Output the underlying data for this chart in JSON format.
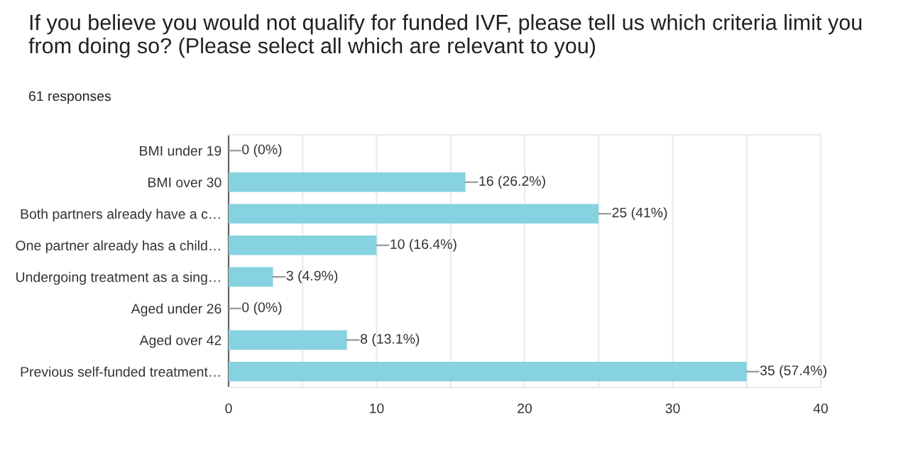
{
  "chart_data": {
    "type": "bar",
    "orientation": "horizontal",
    "title": "If you believe you would not qualify for funded IVF, please tell us which criteria limit you from doing so? (Please select all which are relevant to you)",
    "subtitle": "61 responses",
    "categories": [
      "BMI under 19",
      "BMI over 30",
      "Both partners already have a c…",
      "One partner already has a child…",
      "Undergoing treatment as a sing…",
      "Aged under 26",
      "Aged over 42",
      "Previous self-funded treatment…"
    ],
    "values": [
      0,
      16,
      25,
      10,
      3,
      0,
      8,
      35
    ],
    "value_labels": [
      "0 (0%)",
      "16 (26.2%)",
      "25 (41%)",
      "10 (16.4%)",
      "3 (4.9%)",
      "0 (0%)",
      "8 (13.1%)",
      "35 (57.4%)"
    ],
    "color": "#86d2e0",
    "xlim": [
      0,
      40
    ],
    "xticks": [
      0,
      {
        "value": 5,
        "label": null
      },
      10,
      {
        "value": 15,
        "label": null
      },
      20,
      {
        "value": 25,
        "label": null
      },
      30,
      {
        "value": 35,
        "label": null
      },
      40
    ],
    "grid": "x"
  }
}
